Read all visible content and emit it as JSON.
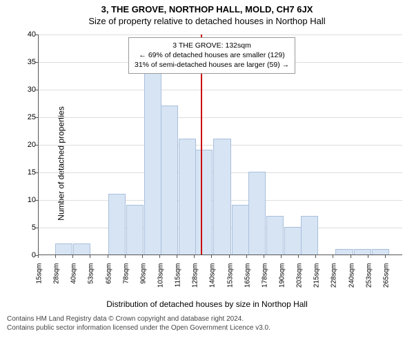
{
  "title_line1": "3, THE GROVE, NORTHOP HALL, MOLD, CH7 6JX",
  "title_line2": "Size of property relative to detached houses in Northop Hall",
  "ylabel": "Number of detached properties",
  "xlabel": "Distribution of detached houses by size in Northop Hall",
  "footer_line1": "Contains HM Land Registry data © Crown copyright and database right 2024.",
  "footer_line2": "Contains public sector information licensed under the Open Government Licence v3.0.",
  "chart": {
    "type": "histogram",
    "ylim": [
      0,
      40
    ],
    "ytick_step": 5,
    "x_min": 15,
    "x_tick_step": 12.5,
    "n_xticks": 21,
    "xtick_suffix": "sqm",
    "bar_color": "#d7e4f4",
    "bar_border": "#a9bfdc",
    "grid_color": "#dddddd",
    "axis_color": "#555555",
    "background_color": "#ffffff",
    "bars": [
      {
        "x": 27,
        "h": 2
      },
      {
        "x": 40,
        "h": 2
      },
      {
        "x": 53,
        "h": 0
      },
      {
        "x": 65,
        "h": 11
      },
      {
        "x": 78,
        "h": 9
      },
      {
        "x": 91,
        "h": 33
      },
      {
        "x": 103,
        "h": 27
      },
      {
        "x": 116,
        "h": 21
      },
      {
        "x": 128,
        "h": 19
      },
      {
        "x": 141,
        "h": 21
      },
      {
        "x": 154,
        "h": 9
      },
      {
        "x": 166,
        "h": 15
      },
      {
        "x": 179,
        "h": 7
      },
      {
        "x": 192,
        "h": 5
      },
      {
        "x": 204,
        "h": 7
      },
      {
        "x": 217,
        "h": 0
      },
      {
        "x": 229,
        "h": 1
      },
      {
        "x": 242,
        "h": 1
      },
      {
        "x": 255,
        "h": 1
      },
      {
        "x": 267,
        "h": 0
      }
    ],
    "reference_line": {
      "x": 132,
      "color": "#cc0000"
    },
    "annotation": {
      "line1": "3 THE GROVE: 132sqm",
      "line2": "← 69% of detached houses are smaller (129)",
      "line3": "31% of semi-detached houses are larger (59) →",
      "border_color": "#999999",
      "bg_color": "#ffffff",
      "fontsize": 10.5
    }
  }
}
